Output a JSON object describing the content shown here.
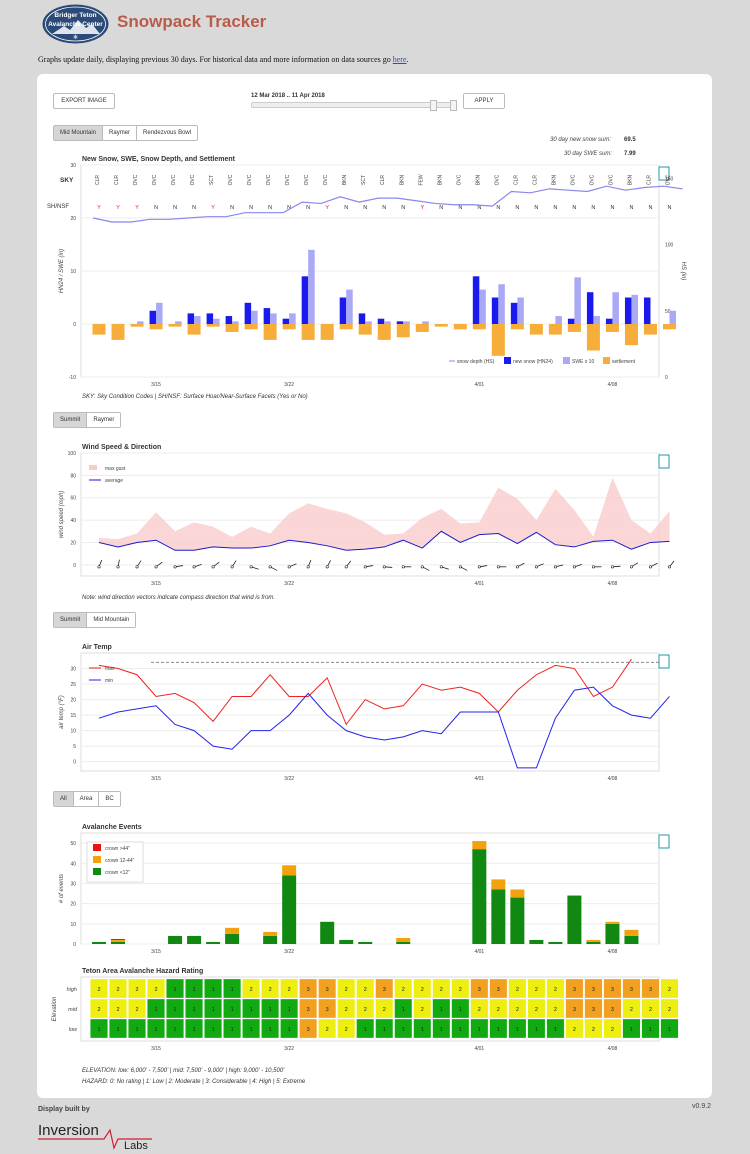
{
  "header": {
    "logo_text": [
      "Bridger Teton",
      "Avalanche Center"
    ],
    "title": "Snowpack Tracker",
    "subtitle_pre": "Graphs update daily, displaying previous 30 days. For historical data and more information on data sources go ",
    "subtitle_link": "here",
    "subtitle_post": "."
  },
  "controls": {
    "export_label": "EXPORT IMAGE",
    "date_range": "12 Mar 2018 .. 11 Apr 2018",
    "apply_label": "APPLY",
    "slider_position": 0.9
  },
  "snow_tabs": [
    "Mid Mountain",
    "Raymer",
    "Rendezvous Bowl"
  ],
  "snow_stats": {
    "new_snow_label": "30 day new snow sum:",
    "new_snow_value": "69.5",
    "swe_label": "30 day SWE sum:",
    "swe_value": "7.99"
  },
  "wind_tabs": [
    "Summit",
    "Raymer"
  ],
  "temp_tabs": [
    "Summit",
    "Mid Mountain"
  ],
  "aval_tabs": [
    "All",
    "Area",
    "BC"
  ],
  "x_ticks": [
    "3/15",
    "3/22",
    "4/01",
    "4/08"
  ],
  "notes": {
    "snow": "SKY: Sky Condition Codes  |  SH/NSF: Surface Hoar/Near-Surface Facets (Yes or No)",
    "wind": "Note: wind direction vectors indicate compass direction that wind is from.",
    "hazard_elev": "ELEVATION: low: 6,000' - 7,500' | mid: 7,500' - 9,000' | high: 9,000' - 10,500'",
    "hazard_scale": "HAZARD: 0: No rating | 1: Low | 2: Moderate | 3: Considerable | 4: High | 5: Extreme"
  },
  "colors": {
    "new_snow": "#1a1aee",
    "swe": "#a9a9f5",
    "settlement": "#f6ad3a",
    "depth": "#8888ee",
    "wind_band": "#f9cccc",
    "wind_avg": "#1a1acc",
    "tmax": "#ee2222",
    "tmin": "#2222ee",
    "aval_large": "#ee1111",
    "aval_mid": "#f2a20c",
    "aval_small": "#118811",
    "haz1": "#11aa11",
    "haz2": "#eeee11",
    "haz3": "#f2a020"
  },
  "chart_data": [
    {
      "type": "bar",
      "title": "New Snow, SWE, Snow Depth, and Settlement",
      "ylabel": "HN24 / SWE (in)",
      "y2label": "HS (in)",
      "ylim": [
        -10,
        30
      ],
      "y2lim": [
        0,
        160
      ],
      "sky_label": "SKY",
      "sky": [
        "CLR",
        "CLR",
        "OVC",
        "OVC",
        "OVC",
        "OVC",
        "SCT",
        "OVC",
        "OVC",
        "OVC",
        "OVC",
        "OVC",
        "OVC",
        "BKN",
        "SCT",
        "CLR",
        "BKN",
        "FEW",
        "BKN",
        "OVC",
        "BKN",
        "OVC",
        "CLR",
        "CLR",
        "BKN",
        "OVC",
        "OVC",
        "OVC",
        "BKN",
        "CLR",
        "OVC"
      ],
      "sh_label": "SH/NSF",
      "sh": [
        "Y",
        "Y",
        "Y",
        "N",
        "N",
        "N",
        "Y",
        "N",
        "N",
        "N",
        "N",
        "N",
        "Y",
        "N",
        "N",
        "N",
        "N",
        "Y",
        "N",
        "N",
        "N",
        "N",
        "N",
        "N",
        "N",
        "N",
        "N",
        "N",
        "N",
        "N",
        "N"
      ],
      "legend": [
        "snow depth (HS)",
        "new snow (HN24)",
        "SWE x 10",
        "settlement"
      ],
      "series": [
        {
          "name": "new snow (HN24)",
          "values": [
            0,
            0,
            0,
            2.5,
            0,
            2,
            2,
            1.5,
            4,
            3,
            1,
            9,
            0,
            5,
            2,
            1,
            0.5,
            0,
            0,
            0,
            9,
            5,
            4,
            0,
            0,
            1,
            6,
            1,
            5,
            5,
            0
          ]
        },
        {
          "name": "SWE x 10",
          "values": [
            0,
            0,
            0.5,
            4,
            0.5,
            1.5,
            1,
            0.5,
            2.5,
            2,
            2,
            14,
            0,
            6.5,
            0.5,
            0.5,
            0.5,
            0.5,
            0,
            0,
            6.5,
            7.5,
            5,
            0,
            1.5,
            8.8,
            1.5,
            6,
            5.5,
            0,
            2.5
          ]
        },
        {
          "name": "settlement",
          "values": [
            -2,
            -3,
            -0.5,
            -1,
            -0.5,
            -2,
            -0.5,
            -1.5,
            -1,
            -3,
            -1,
            -3,
            -3,
            -1,
            -2,
            -3,
            -2.5,
            -1.5,
            -0.5,
            -1,
            -1,
            -6,
            -1,
            -2,
            -2,
            -1.5,
            -5,
            -1.5,
            -4,
            -2,
            -1
          ]
        },
        {
          "name": "snow depth (HS)",
          "values": [
            120,
            117,
            117,
            119,
            119,
            120,
            121,
            121,
            124,
            124,
            124,
            132,
            131,
            136,
            132,
            135,
            135,
            133,
            131,
            130,
            130,
            129,
            140,
            139,
            142,
            141,
            140,
            144,
            141,
            143,
            144,
            142
          ]
        }
      ]
    },
    {
      "type": "line",
      "title": "Wind Speed & Direction",
      "ylabel": "wind speed (mph)",
      "ylim": [
        -10,
        100
      ],
      "legend": [
        "max gust",
        "average"
      ],
      "series": [
        {
          "name": "max gust",
          "values": [
            24,
            23,
            28,
            47,
            30,
            38,
            34,
            25,
            34,
            28,
            46,
            55,
            50,
            46,
            38,
            27,
            28,
            42,
            50,
            37,
            38,
            69,
            59,
            40,
            68,
            49,
            25,
            78,
            40,
            28,
            48
          ]
        },
        {
          "name": "average",
          "values": [
            20,
            16,
            20,
            22,
            13,
            13,
            16,
            15,
            15,
            17,
            22,
            20,
            17,
            13,
            14,
            16,
            22,
            15,
            30,
            20,
            27,
            28,
            19,
            29,
            18,
            16,
            21,
            22,
            14,
            20,
            21
          ]
        },
        {
          "name": "direction",
          "values": [
            200,
            190,
            210,
            230,
            260,
            250,
            230,
            210,
            290,
            300,
            245,
            200,
            205,
            215,
            260,
            275,
            270,
            300,
            290,
            300,
            260,
            270,
            240,
            245,
            255,
            250,
            270,
            265,
            235,
            240,
            215
          ]
        }
      ]
    },
    {
      "type": "line",
      "title": "Air Temp",
      "ylabel": "air temp (°F)",
      "ylim": [
        -3,
        35
      ],
      "legend": [
        "max",
        "min"
      ],
      "reference": 32,
      "series": [
        {
          "name": "max",
          "values": [
            31,
            30,
            28,
            21,
            22,
            19,
            13,
            21,
            21,
            28,
            21,
            21,
            27,
            12,
            20,
            17,
            18,
            25,
            23,
            24,
            22,
            16,
            23,
            28,
            31,
            30,
            21,
            24,
            33
          ]
        },
        {
          "name": "min",
          "values": [
            14,
            16,
            17,
            18,
            12,
            10,
            5,
            4,
            10,
            10,
            15,
            22,
            15,
            10,
            8,
            7,
            8,
            10,
            9,
            16,
            16,
            16,
            -2,
            -2,
            14,
            23,
            24,
            18,
            15,
            14,
            21
          ]
        }
      ]
    },
    {
      "type": "bar",
      "title": "Avalanche Events",
      "ylabel": "# of events",
      "ylim": [
        0,
        55
      ],
      "legend": [
        "crown >44\"",
        "crown 12-44\"",
        "crown <12\""
      ],
      "series": [
        {
          "name": "crown >44\"",
          "values": [
            0,
            0.5,
            0,
            0,
            0,
            0,
            0,
            0,
            0,
            0,
            0,
            0,
            0,
            0,
            0,
            0,
            0,
            0,
            0,
            0,
            0,
            0,
            0,
            0,
            0,
            0,
            0,
            0,
            0,
            0,
            0
          ]
        },
        {
          "name": "crown 12-44\"",
          "values": [
            0,
            1,
            0,
            0,
            0,
            0,
            0,
            3,
            0,
            2,
            5,
            0,
            0,
            0,
            0,
            0,
            2,
            0,
            0,
            0,
            4,
            5,
            4,
            0,
            0,
            0,
            1,
            1,
            3,
            0,
            0
          ]
        },
        {
          "name": "crown <12\"",
          "values": [
            1,
            1,
            0,
            0,
            4,
            4,
            1,
            5,
            0,
            4,
            34,
            0,
            11,
            2,
            1,
            0,
            1,
            0,
            0,
            0,
            47,
            27,
            23,
            2,
            1,
            24,
            1,
            10,
            4,
            0,
            0
          ]
        }
      ]
    },
    {
      "type": "heatmap",
      "title": "Teton Area Avalanche Hazard Rating",
      "ylabel": "Elevation",
      "rows": [
        "high",
        "mid",
        "low"
      ],
      "values": [
        [
          2,
          2,
          2,
          2,
          1,
          1,
          1,
          1,
          2,
          2,
          2,
          3,
          3,
          2,
          2,
          3,
          2,
          2,
          2,
          2,
          3,
          3,
          2,
          2,
          2,
          3,
          3,
          3,
          3,
          3,
          2
        ],
        [
          2,
          2,
          2,
          1,
          1,
          1,
          1,
          1,
          1,
          1,
          1,
          3,
          3,
          2,
          2,
          2,
          1,
          2,
          1,
          1,
          2,
          2,
          2,
          2,
          2,
          3,
          3,
          3,
          2,
          2,
          2
        ],
        [
          1,
          1,
          1,
          1,
          1,
          1,
          1,
          1,
          1,
          1,
          1,
          3,
          2,
          2,
          1,
          1,
          1,
          1,
          1,
          1,
          1,
          1,
          1,
          1,
          1,
          2,
          2,
          2,
          1,
          1,
          1
        ]
      ]
    }
  ],
  "footer": {
    "built_by": "Display built by",
    "brand_a": "Inversion",
    "brand_b": "Labs",
    "version": "v0.9.2"
  }
}
